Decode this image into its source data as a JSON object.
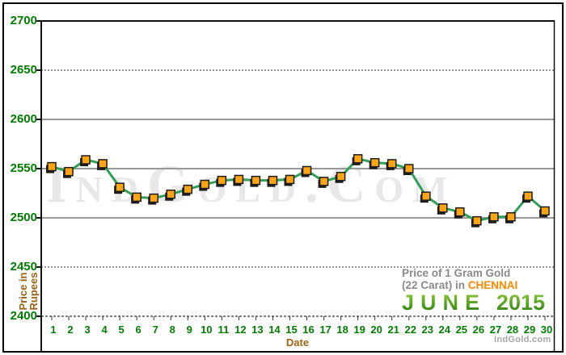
{
  "chart_data": {
    "type": "line",
    "title_line1": "Price of 1 Gram Gold",
    "title_line2": "(22 Carat) in",
    "city": "CHENNAI",
    "month": "JUNE",
    "year": "2015",
    "xlabel": "Date",
    "ylabel_lines": [
      "Price in",
      "Rupees"
    ],
    "watermark": "IndGold.Com",
    "brand": "IndGold.com",
    "x": [
      1,
      2,
      3,
      4,
      5,
      6,
      7,
      8,
      9,
      10,
      11,
      12,
      13,
      14,
      15,
      16,
      17,
      18,
      19,
      20,
      21,
      22,
      23,
      24,
      25,
      26,
      27,
      28,
      29,
      30
    ],
    "values": [
      2552,
      2547,
      2559,
      2555,
      2531,
      2521,
      2520,
      2524,
      2529,
      2534,
      2538,
      2539,
      2538,
      2538,
      2539,
      2548,
      2537,
      2542,
      2560,
      2556,
      2555,
      2550,
      2522,
      2510,
      2506,
      2497,
      2501,
      2501,
      2522,
      2507
    ],
    "ylim": [
      2400,
      2700
    ],
    "yticks": [
      2400,
      2450,
      2500,
      2550,
      2600,
      2650,
      2700
    ],
    "grid_solid": [
      2500,
      2550,
      2600
    ],
    "grid_dotted": [
      2450,
      2650
    ],
    "legend_position": "none",
    "colors": {
      "line": "#2FA055",
      "marker_fill": "#FFA413",
      "marker_border": "#1c1c1c",
      "marker_shadow": "#1c1c1c",
      "axis_black": "#111111",
      "grid_gray": "#999999",
      "tick_label_green": "#007D00",
      "axis_title_brown": "#9C6114",
      "title_gray": "#8A8A8A",
      "city_orange": "#FF8800",
      "month_green": "#459A1E",
      "watermark_gray": "#E8E8E8",
      "brand_gray": "#A6A6A6"
    }
  }
}
